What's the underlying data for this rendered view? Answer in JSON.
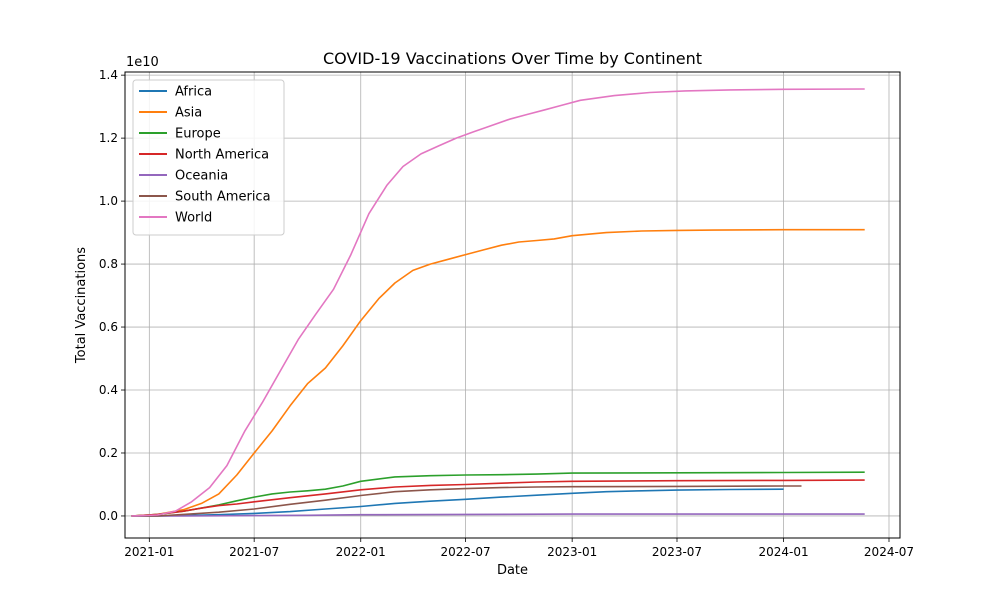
{
  "chart_data": {
    "type": "line",
    "title": "COVID-19 Vaccinations Over Time by Continent",
    "xlabel": "Date",
    "ylabel": "Total Vaccinations",
    "y_offset_label": "1e10",
    "y_scale_factor": 10000000000,
    "xlim": [
      "2020-11-20",
      "2024-07-20"
    ],
    "ylim": [
      -0.07,
      1.41
    ],
    "x_ticks": [
      {
        "value": "2021-01-01",
        "label": "2021-01"
      },
      {
        "value": "2021-07-01",
        "label": "2021-07"
      },
      {
        "value": "2022-01-01",
        "label": "2022-01"
      },
      {
        "value": "2022-07-01",
        "label": "2022-07"
      },
      {
        "value": "2023-01-01",
        "label": "2023-01"
      },
      {
        "value": "2023-07-01",
        "label": "2023-07"
      },
      {
        "value": "2024-01-01",
        "label": "2024-01"
      },
      {
        "value": "2024-07-01",
        "label": "2024-07"
      }
    ],
    "y_ticks": [
      {
        "value": 0.0,
        "label": "0.0"
      },
      {
        "value": 0.2,
        "label": "0.2"
      },
      {
        "value": 0.4,
        "label": "0.4"
      },
      {
        "value": 0.6,
        "label": "0.6"
      },
      {
        "value": 0.8,
        "label": "0.8"
      },
      {
        "value": 1.0,
        "label": "1.0"
      },
      {
        "value": 1.2,
        "label": "1.2"
      },
      {
        "value": 1.4,
        "label": "1.4"
      }
    ],
    "grid": true,
    "legend_position": "upper-left",
    "series": [
      {
        "name": "Africa",
        "color": "#1f77b4",
        "x": [
          "2020-12-01",
          "2021-01-15",
          "2021-03-01",
          "2021-05-01",
          "2021-07-01",
          "2021-09-01",
          "2021-11-01",
          "2022-01-01",
          "2022-03-01",
          "2022-05-01",
          "2022-07-01",
          "2022-09-01",
          "2022-11-01",
          "2023-01-01",
          "2023-03-01",
          "2023-05-01",
          "2023-07-01",
          "2023-10-01",
          "2024-01-01"
        ],
        "y": [
          0.0,
          0.0,
          0.001,
          0.004,
          0.008,
          0.014,
          0.022,
          0.03,
          0.04,
          0.047,
          0.053,
          0.06,
          0.066,
          0.072,
          0.077,
          0.08,
          0.082,
          0.084,
          0.085
        ]
      },
      {
        "name": "Asia",
        "color": "#ff7f0e",
        "x": [
          "2020-12-01",
          "2021-01-15",
          "2021-03-01",
          "2021-04-01",
          "2021-05-01",
          "2021-06-01",
          "2021-07-01",
          "2021-08-01",
          "2021-09-01",
          "2021-10-01",
          "2021-11-01",
          "2021-12-01",
          "2022-01-01",
          "2022-02-01",
          "2022-03-01",
          "2022-04-01",
          "2022-05-01",
          "2022-06-01",
          "2022-07-01",
          "2022-08-01",
          "2022-09-01",
          "2022-10-01",
          "2022-11-01",
          "2022-12-01",
          "2023-01-01",
          "2023-03-01",
          "2023-05-01",
          "2023-07-01",
          "2023-09-01",
          "2024-01-01",
          "2024-05-20"
        ],
        "y": [
          0.0,
          0.005,
          0.02,
          0.04,
          0.07,
          0.13,
          0.2,
          0.27,
          0.35,
          0.42,
          0.47,
          0.54,
          0.62,
          0.69,
          0.74,
          0.78,
          0.8,
          0.815,
          0.83,
          0.845,
          0.86,
          0.87,
          0.875,
          0.88,
          0.89,
          0.9,
          0.905,
          0.907,
          0.908,
          0.909,
          0.909
        ]
      },
      {
        "name": "Europe",
        "color": "#2ca02c",
        "x": [
          "2020-12-01",
          "2021-01-15",
          "2021-03-01",
          "2021-04-01",
          "2021-05-01",
          "2021-06-01",
          "2021-07-01",
          "2021-08-01",
          "2021-09-01",
          "2021-10-01",
          "2021-11-01",
          "2021-12-01",
          "2022-01-01",
          "2022-03-01",
          "2022-05-01",
          "2022-07-01",
          "2022-09-01",
          "2022-11-01",
          "2023-01-01",
          "2023-07-01",
          "2024-01-01",
          "2024-05-20"
        ],
        "y": [
          0.0,
          0.005,
          0.015,
          0.025,
          0.035,
          0.048,
          0.06,
          0.07,
          0.076,
          0.08,
          0.085,
          0.095,
          0.11,
          0.124,
          0.128,
          0.13,
          0.131,
          0.133,
          0.136,
          0.137,
          0.138,
          0.139
        ]
      },
      {
        "name": "North America",
        "color": "#d62728",
        "x": [
          "2020-12-01",
          "2021-01-15",
          "2021-03-01",
          "2021-04-01",
          "2021-05-01",
          "2021-06-01",
          "2021-07-01",
          "2021-09-01",
          "2021-11-01",
          "2022-01-01",
          "2022-03-01",
          "2022-05-01",
          "2022-07-01",
          "2022-09-01",
          "2022-11-01",
          "2023-01-01",
          "2023-07-01",
          "2024-01-01",
          "2024-05-20"
        ],
        "y": [
          0.0,
          0.005,
          0.015,
          0.025,
          0.033,
          0.038,
          0.045,
          0.058,
          0.07,
          0.083,
          0.092,
          0.097,
          0.1,
          0.104,
          0.108,
          0.11,
          0.112,
          0.113,
          0.114
        ]
      },
      {
        "name": "Oceania",
        "color": "#9467bd",
        "x": [
          "2020-12-01",
          "2021-03-01",
          "2021-07-01",
          "2021-10-01",
          "2022-01-01",
          "2022-07-01",
          "2023-01-01",
          "2023-07-01",
          "2024-01-01",
          "2024-05-20"
        ],
        "y": [
          0.0,
          0.0,
          0.001,
          0.002,
          0.004,
          0.005,
          0.006,
          0.006,
          0.006,
          0.006
        ]
      },
      {
        "name": "South America",
        "color": "#8c564b",
        "x": [
          "2020-12-01",
          "2021-01-15",
          "2021-03-01",
          "2021-05-01",
          "2021-07-01",
          "2021-09-01",
          "2021-11-01",
          "2022-01-01",
          "2022-03-01",
          "2022-05-01",
          "2022-07-01",
          "2022-09-01",
          "2022-11-01",
          "2023-01-01",
          "2023-07-01",
          "2024-01-01",
          "2024-02-01"
        ],
        "y": [
          0.0,
          0.0,
          0.005,
          0.012,
          0.022,
          0.037,
          0.05,
          0.065,
          0.077,
          0.083,
          0.087,
          0.09,
          0.092,
          0.093,
          0.094,
          0.095,
          0.095
        ]
      },
      {
        "name": "World",
        "color": "#e377c2",
        "x": [
          "2020-12-01",
          "2021-01-15",
          "2021-02-15",
          "2021-03-15",
          "2021-04-15",
          "2021-05-15",
          "2021-06-15",
          "2021-07-15",
          "2021-08-15",
          "2021-09-15",
          "2021-10-15",
          "2021-11-15",
          "2021-12-15",
          "2022-01-15",
          "2022-02-15",
          "2022-03-15",
          "2022-04-15",
          "2022-05-15",
          "2022-06-15",
          "2022-07-15",
          "2022-08-15",
          "2022-09-15",
          "2022-10-15",
          "2022-11-15",
          "2022-12-15",
          "2023-01-15",
          "2023-03-15",
          "2023-05-15",
          "2023-07-15",
          "2023-10-01",
          "2024-01-01",
          "2024-05-20"
        ],
        "y": [
          0.0,
          0.003,
          0.015,
          0.045,
          0.09,
          0.16,
          0.27,
          0.36,
          0.46,
          0.56,
          0.64,
          0.72,
          0.83,
          0.96,
          1.05,
          1.11,
          1.15,
          1.175,
          1.2,
          1.22,
          1.24,
          1.26,
          1.275,
          1.29,
          1.305,
          1.32,
          1.335,
          1.345,
          1.35,
          1.353,
          1.355,
          1.356
        ]
      }
    ]
  }
}
